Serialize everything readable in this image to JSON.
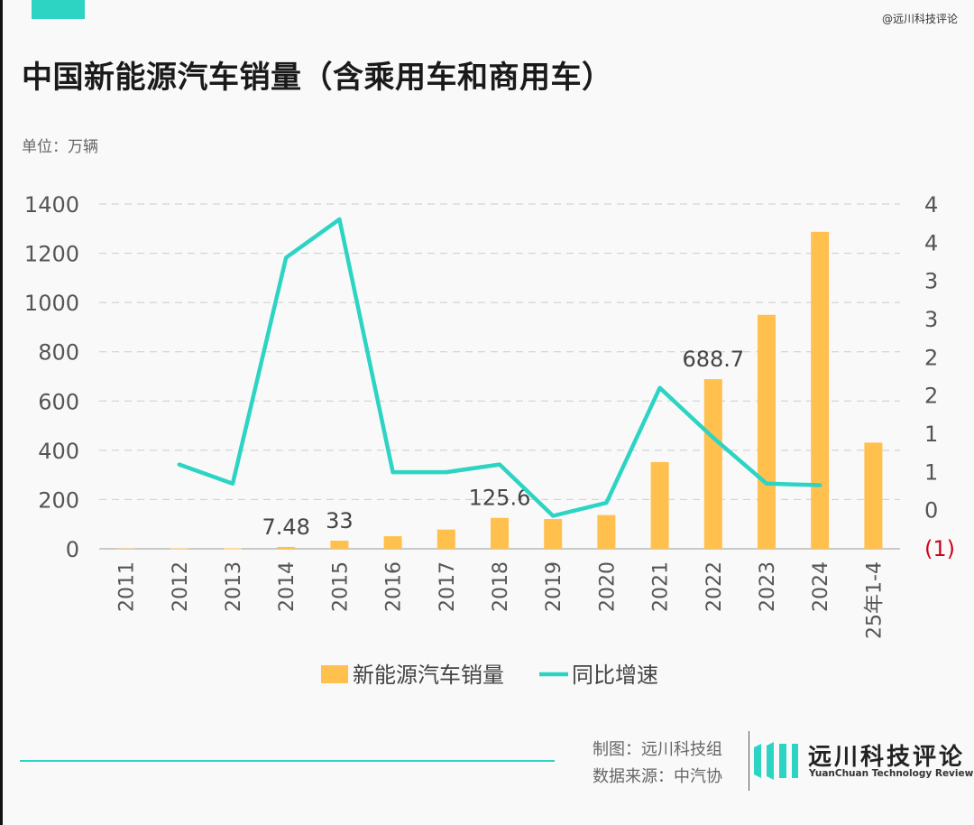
{
  "header": {
    "title": "中国新能源汽车销量（含乘用车和商用车）",
    "unit": "单位：万辆",
    "watermark": "@远川科技评论"
  },
  "colors": {
    "bar": "#ffc04d",
    "line": "#2dd4c4",
    "accent": "#2dd4c4",
    "negative_label": "#d0021b",
    "axis_text": "#555555",
    "grid": "#cccccc"
  },
  "chart_data": {
    "type": "bar+line",
    "categories": [
      "2011",
      "2012",
      "2013",
      "2014",
      "2015",
      "2016",
      "2017",
      "2018",
      "2019",
      "2020",
      "2021",
      "2022",
      "2023",
      "2024",
      "25年1-4"
    ],
    "series": [
      {
        "name": "新能源汽车销量",
        "type": "bar",
        "axis": "left",
        "values": [
          0.8,
          1.3,
          1.8,
          7.48,
          33,
          51,
          78,
          125.6,
          121,
          137,
          352,
          688.7,
          950,
          1287,
          431
        ]
      },
      {
        "name": "同比增速",
        "type": "line",
        "axis": "right",
        "values": [
          null,
          0.6,
          0.35,
          3.3,
          3.8,
          0.5,
          0.5,
          0.6,
          -0.07,
          0.1,
          1.6,
          0.95,
          0.35,
          0.33,
          null
        ]
      }
    ],
    "data_labels": [
      {
        "index": 3,
        "text": "7.48"
      },
      {
        "index": 4,
        "text": "33"
      },
      {
        "index": 7,
        "text": "125.6"
      },
      {
        "index": 11,
        "text": "688.7"
      }
    ],
    "y_left": {
      "range": [
        0,
        1400
      ],
      "ticks": [
        "0",
        "200",
        "400",
        "600",
        "800",
        "1000",
        "1200",
        "1400"
      ]
    },
    "y_right": {
      "range": [
        -0.5,
        4.0
      ],
      "ticks": [
        "(1)",
        "0",
        "1",
        "1",
        "2",
        "2",
        "3",
        "3",
        "4",
        "4"
      ]
    },
    "grid": true,
    "legend": {
      "position": "bottom",
      "items": [
        "新能源汽车销量",
        "同比增速"
      ]
    }
  },
  "footer": {
    "credit_maker": "制图：远川科技组",
    "credit_source": "数据来源：中汽协",
    "logo_cn": "远川科技评论",
    "logo_en": "YuanChuan Technology Review"
  }
}
